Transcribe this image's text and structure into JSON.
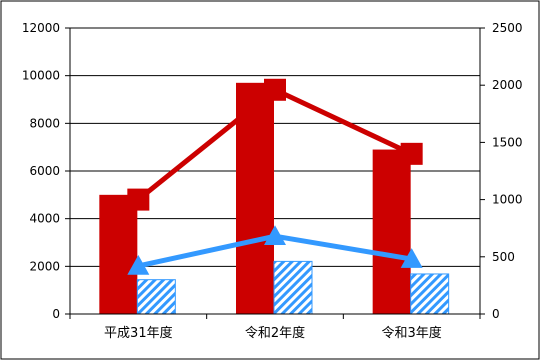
{
  "chart_data": {
    "type": "bar",
    "categories": [
      "平成31年度",
      "令和2年度",
      "令和3年度"
    ],
    "series": [
      {
        "type": "bar",
        "axis": "left",
        "color": "#cc0000",
        "values": [
          5000,
          9700,
          6900
        ]
      },
      {
        "type": "bar",
        "axis": "right",
        "color": "#3399ff",
        "pattern": "diagonal-hatch",
        "values": [
          300,
          460,
          350
        ]
      },
      {
        "type": "line",
        "axis": "right",
        "color": "#cc0000",
        "marker": "square",
        "values": [
          1000,
          1960,
          1400
        ]
      },
      {
        "type": "line",
        "axis": "right",
        "color": "#3399ff",
        "marker": "triangle",
        "values": [
          420,
          680,
          480
        ]
      }
    ],
    "y_left": {
      "min": 0,
      "max": 12000,
      "ticks": [
        "0",
        "2000",
        "4000",
        "6000",
        "8000",
        "10000",
        "12000"
      ]
    },
    "y_right": {
      "min": 0,
      "max": 2500,
      "ticks": [
        "0",
        "500",
        "1000",
        "1500",
        "2000",
        "2500"
      ]
    },
    "grid": true,
    "legend": "none",
    "title": "",
    "xlabel": "",
    "ylabel": ""
  }
}
